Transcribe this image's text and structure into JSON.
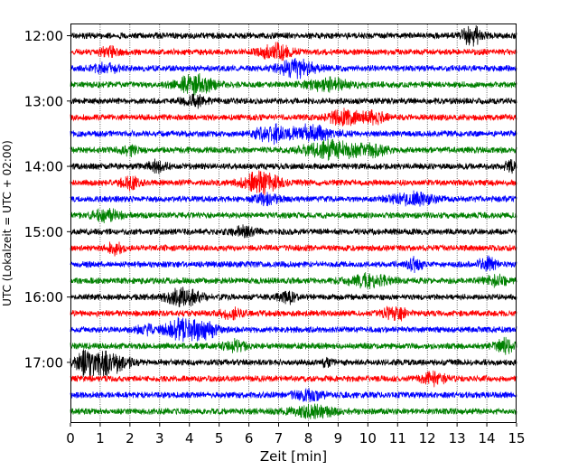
{
  "chart_data": {
    "type": "line",
    "title": "",
    "xlabel": "Zeit  [min]",
    "ylabel": "UTC (Lokalzeit = UTC + 02:00)",
    "xlim": [
      0,
      15
    ],
    "x_ticks": [
      0,
      1,
      2,
      3,
      4,
      5,
      6,
      7,
      8,
      9,
      10,
      11,
      12,
      13,
      14,
      15
    ],
    "x_tick_labels": [
      "0",
      "1",
      "2",
      "3",
      "4",
      "5",
      "6",
      "7",
      "8",
      "9",
      "10",
      "11",
      "12",
      "13",
      "14",
      "15"
    ],
    "y_tick_labels": [
      "12:00",
      "13:00",
      "14:00",
      "15:00",
      "16:00",
      "17:00"
    ],
    "vertical_grid": true,
    "row_colors": [
      "#000000",
      "#ff0000",
      "#0000ff",
      "#008000"
    ],
    "rows": [
      {
        "start": "12:00",
        "events": [
          [
            13.5,
            2.6,
            0.35
          ]
        ]
      },
      {
        "start": "12:15",
        "events": [
          [
            6.9,
            2.2,
            0.5
          ],
          [
            1.3,
            1.4,
            0.3
          ]
        ]
      },
      {
        "start": "12:30",
        "events": [
          [
            7.6,
            2.4,
            0.6
          ],
          [
            1.2,
            1.3,
            0.4
          ]
        ]
      },
      {
        "start": "12:45",
        "events": [
          [
            4.2,
            2.8,
            0.6
          ],
          [
            8.7,
            1.6,
            0.8
          ]
        ]
      },
      {
        "start": "13:00",
        "events": [
          [
            4.2,
            1.5,
            0.4
          ]
        ]
      },
      {
        "start": "13:15",
        "events": [
          [
            9.2,
            2.2,
            0.5
          ],
          [
            10.2,
            1.6,
            0.4
          ]
        ]
      },
      {
        "start": "13:30",
        "events": [
          [
            6.7,
            2.4,
            0.45
          ],
          [
            8.0,
            2.2,
            0.8
          ]
        ]
      },
      {
        "start": "13:45",
        "events": [
          [
            8.8,
            2.6,
            0.9
          ],
          [
            2.0,
            1.5,
            0.3
          ],
          [
            10.2,
            1.4,
            0.5
          ]
        ]
      },
      {
        "start": "14:00",
        "events": [
          [
            2.9,
            1.6,
            0.3
          ],
          [
            14.8,
            1.4,
            0.2
          ]
        ]
      },
      {
        "start": "14:15",
        "events": [
          [
            6.4,
            3.0,
            0.6
          ],
          [
            2.0,
            1.6,
            0.3
          ]
        ]
      },
      {
        "start": "14:30",
        "events": [
          [
            11.5,
            1.7,
            0.7
          ],
          [
            6.6,
            1.3,
            0.4
          ]
        ]
      },
      {
        "start": "14:45",
        "events": [
          [
            1.2,
            1.5,
            0.5
          ]
        ]
      },
      {
        "start": "15:00",
        "events": [
          [
            5.8,
            1.4,
            0.4
          ]
        ]
      },
      {
        "start": "15:15",
        "events": [
          [
            1.5,
            1.6,
            0.25
          ]
        ]
      },
      {
        "start": "15:30",
        "events": [
          [
            11.6,
            2.0,
            0.25
          ],
          [
            14.0,
            1.8,
            0.3
          ]
        ]
      },
      {
        "start": "15:45",
        "events": [
          [
            10.0,
            1.7,
            0.7
          ],
          [
            14.3,
            1.3,
            0.4
          ]
        ]
      },
      {
        "start": "16:00",
        "events": [
          [
            3.8,
            2.4,
            0.6
          ],
          [
            7.3,
            1.7,
            0.3
          ]
        ]
      },
      {
        "start": "16:15",
        "events": [
          [
            10.9,
            2.4,
            0.35
          ],
          [
            5.4,
            1.3,
            0.4
          ]
        ]
      },
      {
        "start": "16:30",
        "events": [
          [
            3.7,
            3.0,
            0.5
          ],
          [
            4.5,
            2.6,
            0.4
          ],
          [
            2.5,
            1.3,
            0.3
          ]
        ]
      },
      {
        "start": "16:45",
        "events": [
          [
            14.7,
            2.2,
            0.4
          ],
          [
            5.5,
            1.5,
            0.4
          ]
        ]
      },
      {
        "start": "17:00",
        "events": [
          [
            0.5,
            3.5,
            0.35
          ],
          [
            1.1,
            3.0,
            0.45
          ],
          [
            1.7,
            1.8,
            0.4
          ],
          [
            8.6,
            1.5,
            0.15
          ]
        ]
      },
      {
        "start": "17:15",
        "events": [
          [
            12.2,
            1.8,
            0.4
          ]
        ]
      },
      {
        "start": "17:30",
        "events": [
          [
            8.0,
            1.3,
            0.5
          ]
        ]
      },
      {
        "start": "17:45",
        "events": [
          [
            8.2,
            1.5,
            0.8
          ]
        ]
      }
    ]
  }
}
